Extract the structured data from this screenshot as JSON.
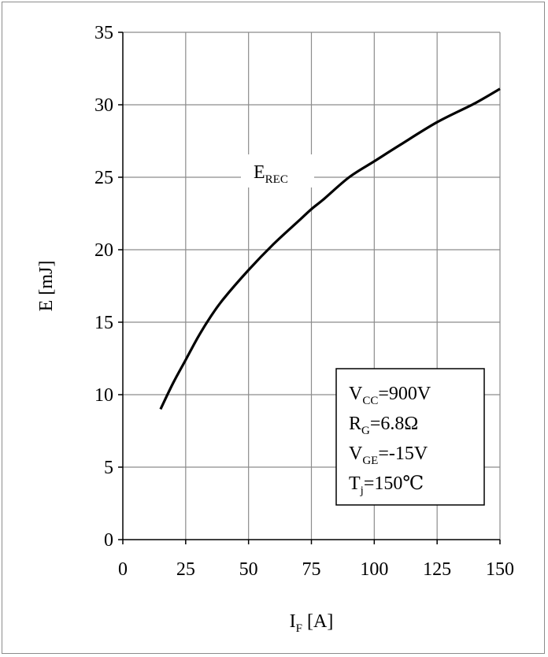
{
  "chart_data": {
    "type": "line",
    "title": "",
    "xlabel": {
      "main": "I",
      "sub": "F",
      "unit": " [A]"
    },
    "ylabel": "E [mJ]",
    "xlim": [
      0,
      150
    ],
    "ylim": [
      0,
      35
    ],
    "xticks": [
      0,
      25,
      50,
      75,
      100,
      125,
      150
    ],
    "yticks": [
      0,
      5,
      10,
      15,
      20,
      25,
      30,
      35
    ],
    "grid": true,
    "series": [
      {
        "name": {
          "main": "E",
          "sub": "REC"
        },
        "color": "#000000",
        "x": [
          15,
          20,
          25,
          30,
          35,
          40,
          50,
          60,
          70,
          75,
          80,
          90,
          100,
          110,
          125,
          140,
          150
        ],
        "y": [
          9.0,
          10.8,
          12.4,
          14.0,
          15.4,
          16.6,
          18.6,
          20.4,
          22.0,
          22.8,
          23.5,
          25.0,
          26.1,
          27.2,
          28.8,
          30.1,
          31.1
        ]
      }
    ],
    "conditions": [
      {
        "main": "V",
        "sub": "CC",
        "rest": "=900V"
      },
      {
        "main": "R",
        "sub": "G",
        "rest": "=6.8Ω"
      },
      {
        "main": "V",
        "sub": "GE",
        "rest": "=-15V"
      },
      {
        "main": "T",
        "sub": "j",
        "rest": "=150℃"
      }
    ]
  }
}
